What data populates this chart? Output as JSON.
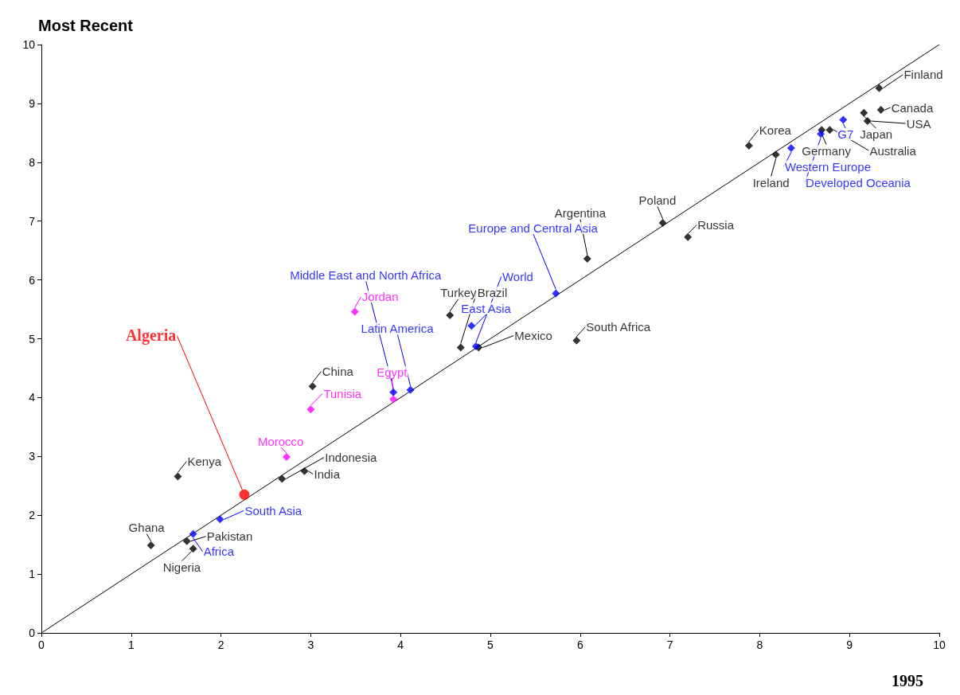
{
  "chart_data": {
    "type": "scatter",
    "ylabel": "Most Recent",
    "xlabel": "1995",
    "xlim": [
      0,
      10
    ],
    "ylim": [
      0,
      10
    ],
    "xticks": [
      0,
      1,
      2,
      3,
      4,
      5,
      6,
      7,
      8,
      9,
      10
    ],
    "yticks": [
      0,
      1,
      2,
      3,
      4,
      5,
      6,
      7,
      8,
      9,
      10
    ],
    "grid": false,
    "marker": "diamond",
    "series": [
      {
        "color": "#000000",
        "x": [
          9.33,
          9.35,
          9.2,
          9.16,
          7.88,
          8.69,
          8.78,
          8.18,
          6.92,
          7.2,
          6.08,
          5.96,
          4.87,
          4.55,
          4.67,
          3.02,
          2.68,
          2.93,
          1.52,
          1.22,
          1.62,
          1.69
        ],
        "values": [
          9.26,
          8.89,
          8.7,
          8.84,
          8.28,
          8.55,
          8.55,
          8.13,
          6.97,
          6.73,
          6.36,
          4.97,
          4.85,
          5.4,
          4.85,
          4.19,
          2.62,
          2.75,
          2.66,
          1.49,
          1.56,
          1.43
        ],
        "value_labels": [
          "Finland",
          "Canada",
          "USA",
          "Japan",
          "Korea",
          "Germany",
          "Australia",
          "Ireland",
          "Poland",
          "Russia",
          "Argentina",
          "South Africa",
          "Mexico",
          "Turkey",
          "Brazil",
          "China",
          "Indonesia",
          "India",
          "Kenya",
          "Ghana",
          "Pakistan",
          "Nigeria"
        ]
      },
      {
        "color": "#0000ff",
        "x": [
          8.93,
          8.35,
          8.68,
          5.73,
          4.84,
          4.79,
          3.92,
          4.11,
          1.99,
          1.69
        ],
        "values": [
          8.72,
          8.24,
          8.48,
          5.77,
          4.87,
          5.22,
          4.09,
          4.13,
          1.93,
          1.68
        ],
        "value_labels": [
          "G7",
          "Western Europe",
          "Developed Oceania",
          "Europe and Central Asia",
          "World",
          "East Asia",
          "Middle East and North Africa",
          "Latin America",
          "South Asia",
          "Africa"
        ]
      },
      {
        "color": "#ff00ff",
        "x": [
          3.49,
          3.92,
          3.0,
          2.73
        ],
        "values": [
          5.46,
          3.97,
          3.8,
          2.99
        ],
        "value_labels": [
          "Jordan",
          "Egypt",
          "Tunisia",
          "Morocco"
        ]
      },
      {
        "color": "#ff0000",
        "marker": "circle",
        "x": [
          2.26
        ],
        "values": [
          2.35
        ],
        "value_labels": [
          "Algeria"
        ]
      },
      {
        "type": "line",
        "color": "#000000",
        "marker": "none",
        "x": [
          0,
          10
        ],
        "values": [
          0,
          10
        ]
      }
    ]
  }
}
